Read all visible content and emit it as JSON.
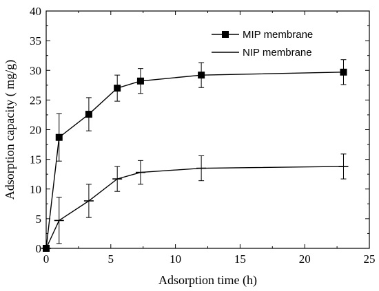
{
  "chart_data": {
    "type": "line",
    "xlabel": "Adsorption time (h)",
    "ylabel": "Adsorption capacity ( mg/g)",
    "xlim": [
      0,
      25
    ],
    "ylim": [
      0,
      40
    ],
    "x_ticks": [
      "0",
      "5",
      "10",
      "15",
      "20",
      "25"
    ],
    "y_ticks": [
      "0",
      "5",
      "10",
      "15",
      "20",
      "25",
      "30",
      "35",
      "40"
    ],
    "grid": false,
    "legend_position": "top-right",
    "series": [
      {
        "name": "MIP membrane",
        "marker": "filled-square",
        "color": "#000000",
        "x": [
          0,
          1,
          3.3,
          5.5,
          7.3,
          12,
          23
        ],
        "y": [
          0,
          18.7,
          22.6,
          27.0,
          28.2,
          29.2,
          29.7
        ],
        "err": [
          0,
          4.0,
          2.8,
          2.2,
          2.1,
          2.1,
          2.1
        ]
      },
      {
        "name": "NIP membrane",
        "marker": "horizontal-dash",
        "color": "#000000",
        "x": [
          0,
          1,
          3.3,
          5.5,
          7.3,
          12,
          23
        ],
        "y": [
          0,
          4.7,
          8.0,
          11.7,
          12.8,
          13.5,
          13.8
        ],
        "err": [
          0,
          3.9,
          2.8,
          2.1,
          2.0,
          2.1,
          2.1
        ]
      }
    ]
  }
}
